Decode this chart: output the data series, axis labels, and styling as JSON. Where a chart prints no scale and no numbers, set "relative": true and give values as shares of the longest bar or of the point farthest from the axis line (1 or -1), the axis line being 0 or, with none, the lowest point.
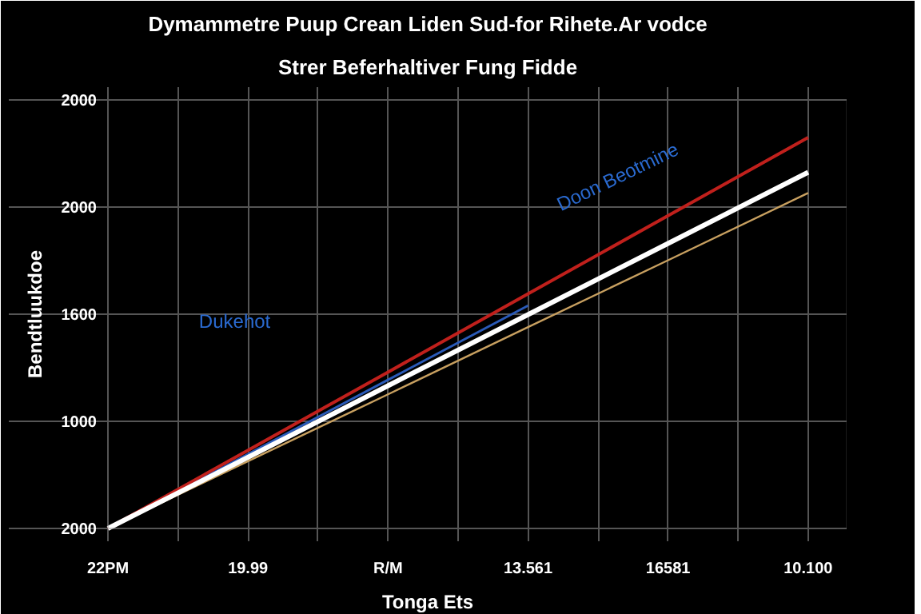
{
  "chart_data": {
    "type": "line",
    "title": "Dymammetre Puup Crean Liden Sud-for Rihete.Ar vodce",
    "subtitle": "Strer Beferhaltiver Fung Fidde",
    "xlabel": "Tonga Ets",
    "ylabel": "Bendtluukdoe",
    "annotations": [
      "Dukehot",
      "Doon Beotmine",
      "2000",
      "1000",
      "1600",
      "2000",
      "2000"
    ],
    "relative": true,
    "categories": [
      "22PM",
      "19.99",
      "R/M",
      "13.561",
      "16581",
      "10.100"
    ],
    "grid": true,
    "marker": "none",
    "line_style": "solid",
    "series": [
      {
        "color": "#2a5ab8",
        "values": [
          0,
          0.19,
          0.38,
          0.57,
          null,
          null
        ]
      },
      {
        "color": "#c8a060",
        "values": [
          0,
          0.172,
          0.343,
          0.515,
          0.686,
          0.858
        ]
      },
      {
        "color": "#c0201c",
        "values": [
          0,
          0.2,
          0.4,
          0.6,
          0.8,
          1
        ]
      },
      {
        "color": "#ffffff",
        "values": [
          0,
          0.182,
          0.365,
          0.547,
          0.729,
          0.911
        ]
      }
    ]
  }
}
